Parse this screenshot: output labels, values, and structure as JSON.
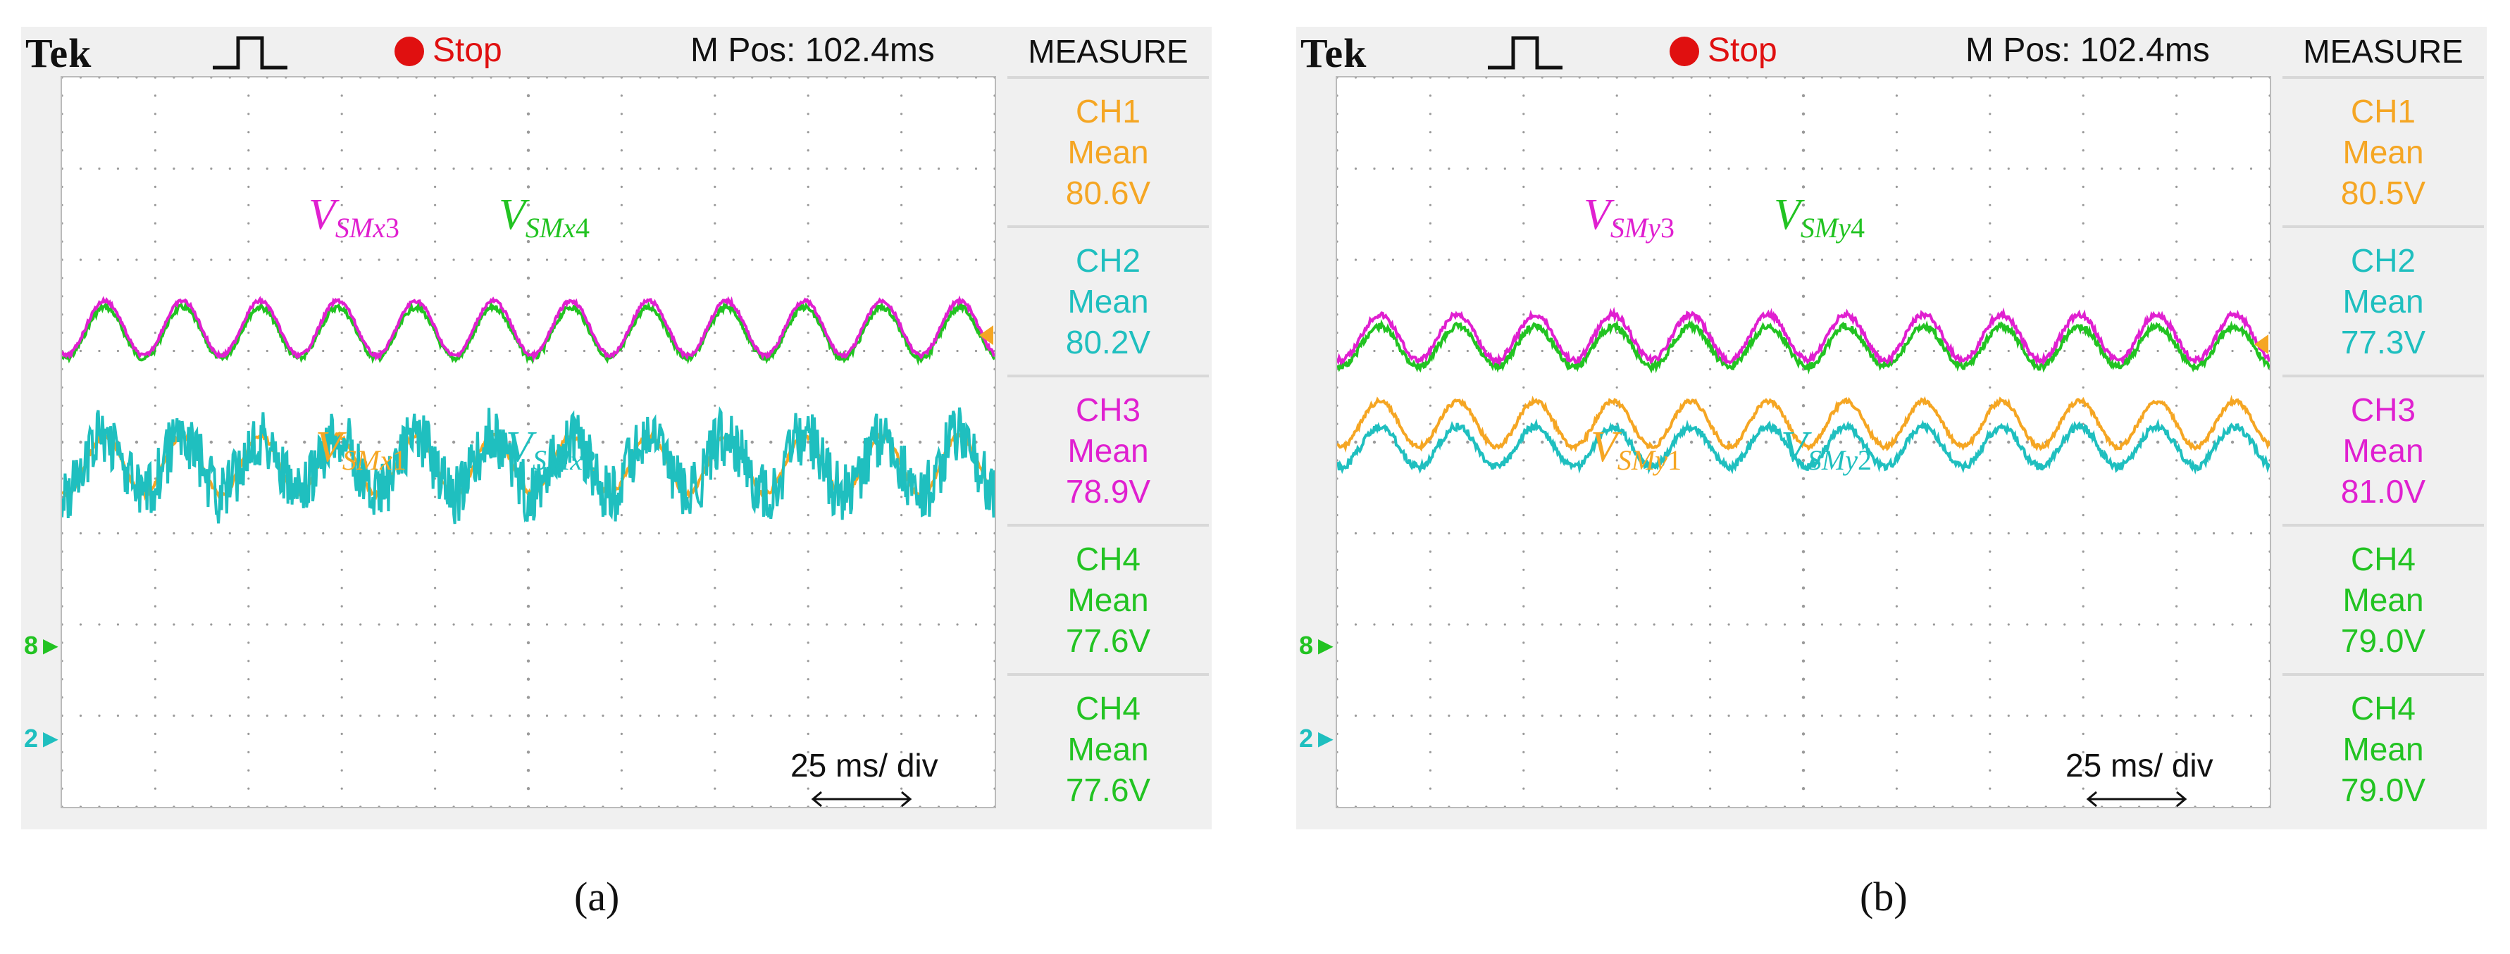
{
  "chart_data": [
    {
      "type": "line",
      "panel_caption": "(a)",
      "header": {
        "brand": "Tek",
        "status": "Stop",
        "position": "M Pos: 102.4ms"
      },
      "x_scale": "25 ms/ div",
      "grid": true,
      "series": [
        {
          "name": "VSMx1",
          "label": {
            "base": "V",
            "sub": "SMx",
            "num": "1"
          },
          "color": "#f5a623",
          "mean": "80.6V",
          "center": 4.25,
          "amp": 0.32,
          "noise": 0.05
        },
        {
          "name": "VSMx2",
          "label": {
            "base": "V",
            "sub": "SMx",
            "num": "2"
          },
          "color": "#1fbfbf",
          "mean": "80.2V",
          "center": 4.25,
          "amp": 0.32,
          "noise": 0.3
        },
        {
          "name": "VSMx3",
          "label": {
            "base": "V",
            "sub": "SMx",
            "num": "3"
          },
          "color": "#e020d0",
          "mean": "78.9V",
          "center": 2.75,
          "amp": 0.3,
          "noise": 0.04
        },
        {
          "name": "VSMx4",
          "label": {
            "base": "V",
            "sub": "SMx",
            "num": "4"
          },
          "color": "#22c322",
          "mean": "77.6V",
          "center": 2.8,
          "amp": 0.28,
          "noise": 0.06
        }
      ],
      "periods": 12,
      "measure": {
        "title": "MEASURE",
        "items": [
          {
            "ch": "CH1",
            "stat": "Mean",
            "value": "80.6V",
            "color": "#f5a623"
          },
          {
            "ch": "CH2",
            "stat": "Mean",
            "value": "80.2V",
            "color": "#1fbfbf"
          },
          {
            "ch": "CH3",
            "stat": "Mean",
            "value": "78.9V",
            "color": "#e020d0"
          },
          {
            "ch": "CH4",
            "stat": "Mean",
            "value": "77.6V",
            "color": "#22c322"
          },
          {
            "ch": "CH4",
            "stat": "Mean",
            "value": "77.6V",
            "color": "#22c322"
          }
        ]
      }
    },
    {
      "type": "line",
      "panel_caption": "(b)",
      "header": {
        "brand": "Tek",
        "status": "Stop",
        "position": "M Pos: 102.4ms"
      },
      "x_scale": "25 ms/ div",
      "grid": true,
      "series": [
        {
          "name": "VSMy1",
          "label": {
            "base": "V",
            "sub": "SMy",
            "num": "1"
          },
          "color": "#f5a623",
          "mean": "80.5V",
          "center": 3.8,
          "amp": 0.25,
          "noise": 0.05
        },
        {
          "name": "VSMy2",
          "label": {
            "base": "V",
            "sub": "SMy",
            "num": "2"
          },
          "color": "#1fbfbf",
          "mean": "77.3V",
          "center": 4.05,
          "amp": 0.22,
          "noise": 0.08
        },
        {
          "name": "VSMy3",
          "label": {
            "base": "V",
            "sub": "SMy",
            "num": "3"
          },
          "color": "#e020d0",
          "mean": "81.0V",
          "center": 2.85,
          "amp": 0.25,
          "noise": 0.06
        },
        {
          "name": "VSMy4",
          "label": {
            "base": "V",
            "sub": "SMy",
            "num": "4"
          },
          "color": "#22c322",
          "mean": "79.0V",
          "center": 2.95,
          "amp": 0.22,
          "noise": 0.07
        }
      ],
      "periods": 12,
      "measure": {
        "title": "MEASURE",
        "items": [
          {
            "ch": "CH1",
            "stat": "Mean",
            "value": "80.5V",
            "color": "#f5a623"
          },
          {
            "ch": "CH2",
            "stat": "Mean",
            "value": "77.3V",
            "color": "#1fbfbf"
          },
          {
            "ch": "CH3",
            "stat": "Mean",
            "value": "81.0V",
            "color": "#e020d0"
          },
          {
            "ch": "CH4",
            "stat": "Mean",
            "value": "79.0V",
            "color": "#22c322"
          },
          {
            "ch": "CH4",
            "stat": "Mean",
            "value": "79.0V",
            "color": "#22c322"
          }
        ]
      }
    }
  ]
}
